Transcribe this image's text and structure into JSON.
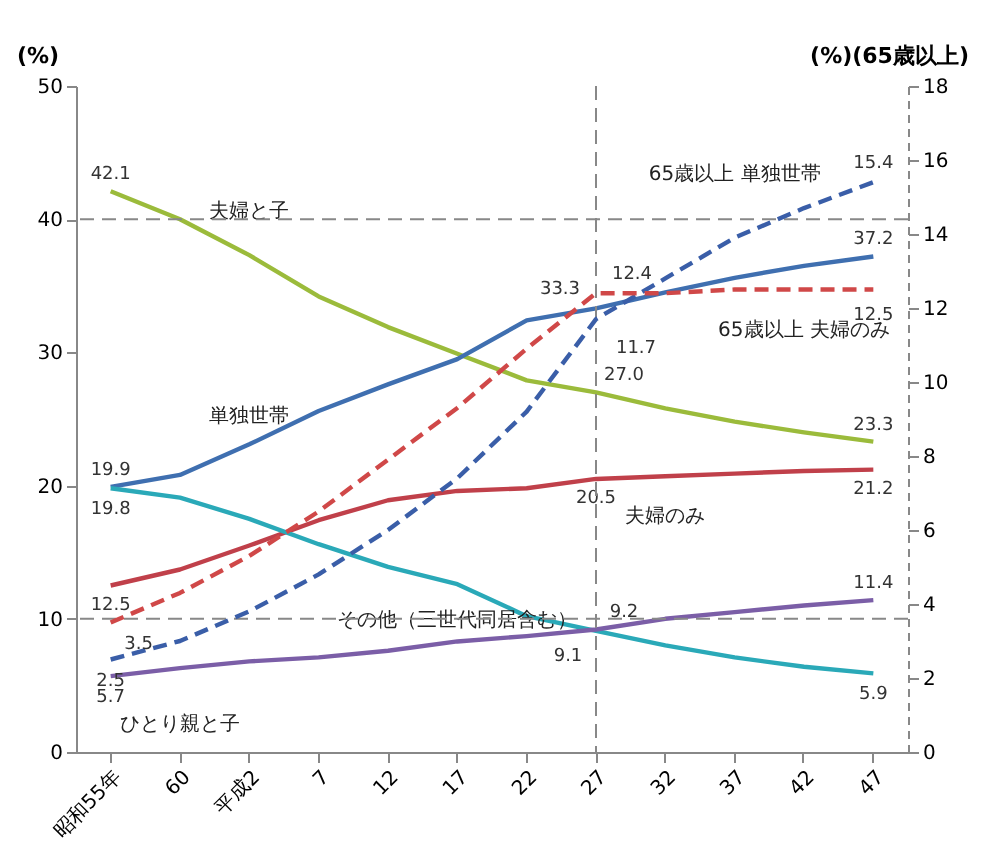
{
  "chart_data": {
    "type": "line",
    "ylabel": "(%)",
    "y2label": "(%)(65歳以上)",
    "categories": [
      "昭和55年",
      "60",
      "平成2",
      "7",
      "12",
      "17",
      "22",
      "27",
      "32",
      "37",
      "42",
      "47"
    ],
    "ylim": [
      0,
      50
    ],
    "yticks": [
      0,
      10,
      20,
      30,
      40,
      50
    ],
    "y2lim": [
      0,
      18
    ],
    "y2ticks": [
      0,
      2,
      4,
      6,
      8,
      10,
      12,
      14,
      16,
      18
    ],
    "grid": false,
    "marker": "none",
    "series": [
      {
        "name": "夫婦と子",
        "color": "#9bbb3b",
        "line_style": "solid",
        "values": [
          42.1,
          40.0,
          37.3,
          34.2,
          31.9,
          29.9,
          27.9,
          27.0,
          25.8,
          24.8,
          24.0,
          23.3
        ],
        "value_labels": [
          "42.1",
          null,
          null,
          null,
          null,
          null,
          null,
          "27.0",
          null,
          null,
          null,
          "23.3"
        ]
      },
      {
        "name": "単独世帯",
        "color": "#3f6fb0",
        "line_style": "solid",
        "values": [
          19.9,
          20.8,
          23.1,
          25.6,
          27.6,
          29.5,
          32.4,
          33.3,
          34.5,
          35.6,
          36.5,
          37.2
        ],
        "value_labels": [
          "19.9",
          null,
          null,
          null,
          null,
          null,
          null,
          "33.3",
          null,
          null,
          null,
          "37.2"
        ]
      },
      {
        "name": "夫婦のみ",
        "color": "#c0404a",
        "line_style": "solid",
        "values": [
          12.5,
          13.7,
          15.5,
          17.4,
          18.9,
          19.6,
          19.8,
          20.5,
          20.7,
          20.9,
          21.1,
          21.2
        ],
        "value_labels": [
          "12.5",
          null,
          null,
          null,
          null,
          null,
          null,
          "20.5",
          null,
          null,
          null,
          "21.2"
        ]
      },
      {
        "name": "その他（三世代同居含む）",
        "color": "#2aa9b8",
        "line_style": "solid",
        "values": [
          19.8,
          19.1,
          17.5,
          15.6,
          13.9,
          12.6,
          10.2,
          9.1,
          8.0,
          7.1,
          6.4,
          5.9
        ],
        "value_labels": [
          "19.8",
          null,
          null,
          null,
          null,
          null,
          null,
          "9.1",
          null,
          null,
          null,
          "5.9"
        ]
      },
      {
        "name": "ひとり親と子",
        "color": "#7b5ea7",
        "line_style": "solid",
        "values": [
          5.7,
          6.3,
          6.8,
          7.1,
          7.6,
          8.3,
          8.7,
          9.2,
          10.0,
          10.5,
          11.0,
          11.4
        ],
        "value_labels": [
          "5.7",
          null,
          null,
          null,
          null,
          null,
          null,
          "9.2",
          null,
          null,
          null,
          "11.4"
        ]
      },
      {
        "name": "65歳以上 単独世帯",
        "color": "#3a5ea8",
        "axis": "y2",
        "line_style": "dashed",
        "values": [
          2.5,
          3.0,
          3.8,
          4.8,
          6.0,
          7.4,
          9.2,
          11.7,
          12.8,
          13.9,
          14.7,
          15.4
        ],
        "value_labels": [
          "2.5",
          null,
          null,
          null,
          null,
          null,
          null,
          "11.7",
          null,
          null,
          null,
          "15.4"
        ]
      },
      {
        "name": "65歳以上 夫婦のみ",
        "color": "#d04848",
        "axis": "y2",
        "line_style": "dashed",
        "values": [
          3.5,
          4.3,
          5.3,
          6.5,
          7.9,
          9.3,
          10.9,
          12.4,
          12.4,
          12.5,
          12.5,
          12.5
        ],
        "value_labels": [
          "3.5",
          null,
          null,
          null,
          null,
          null,
          null,
          "12.4",
          null,
          null,
          null,
          "12.5"
        ]
      }
    ],
    "ref_lines": [
      {
        "axis": "y",
        "value": 40,
        "line_style": "dashed",
        "color": "#888888"
      },
      {
        "axis": "y",
        "value": 10,
        "line_style": "dashed",
        "color": "#888888"
      },
      {
        "axis": "x",
        "value": "27",
        "line_style": "dashed",
        "color": "#888888"
      }
    ]
  }
}
